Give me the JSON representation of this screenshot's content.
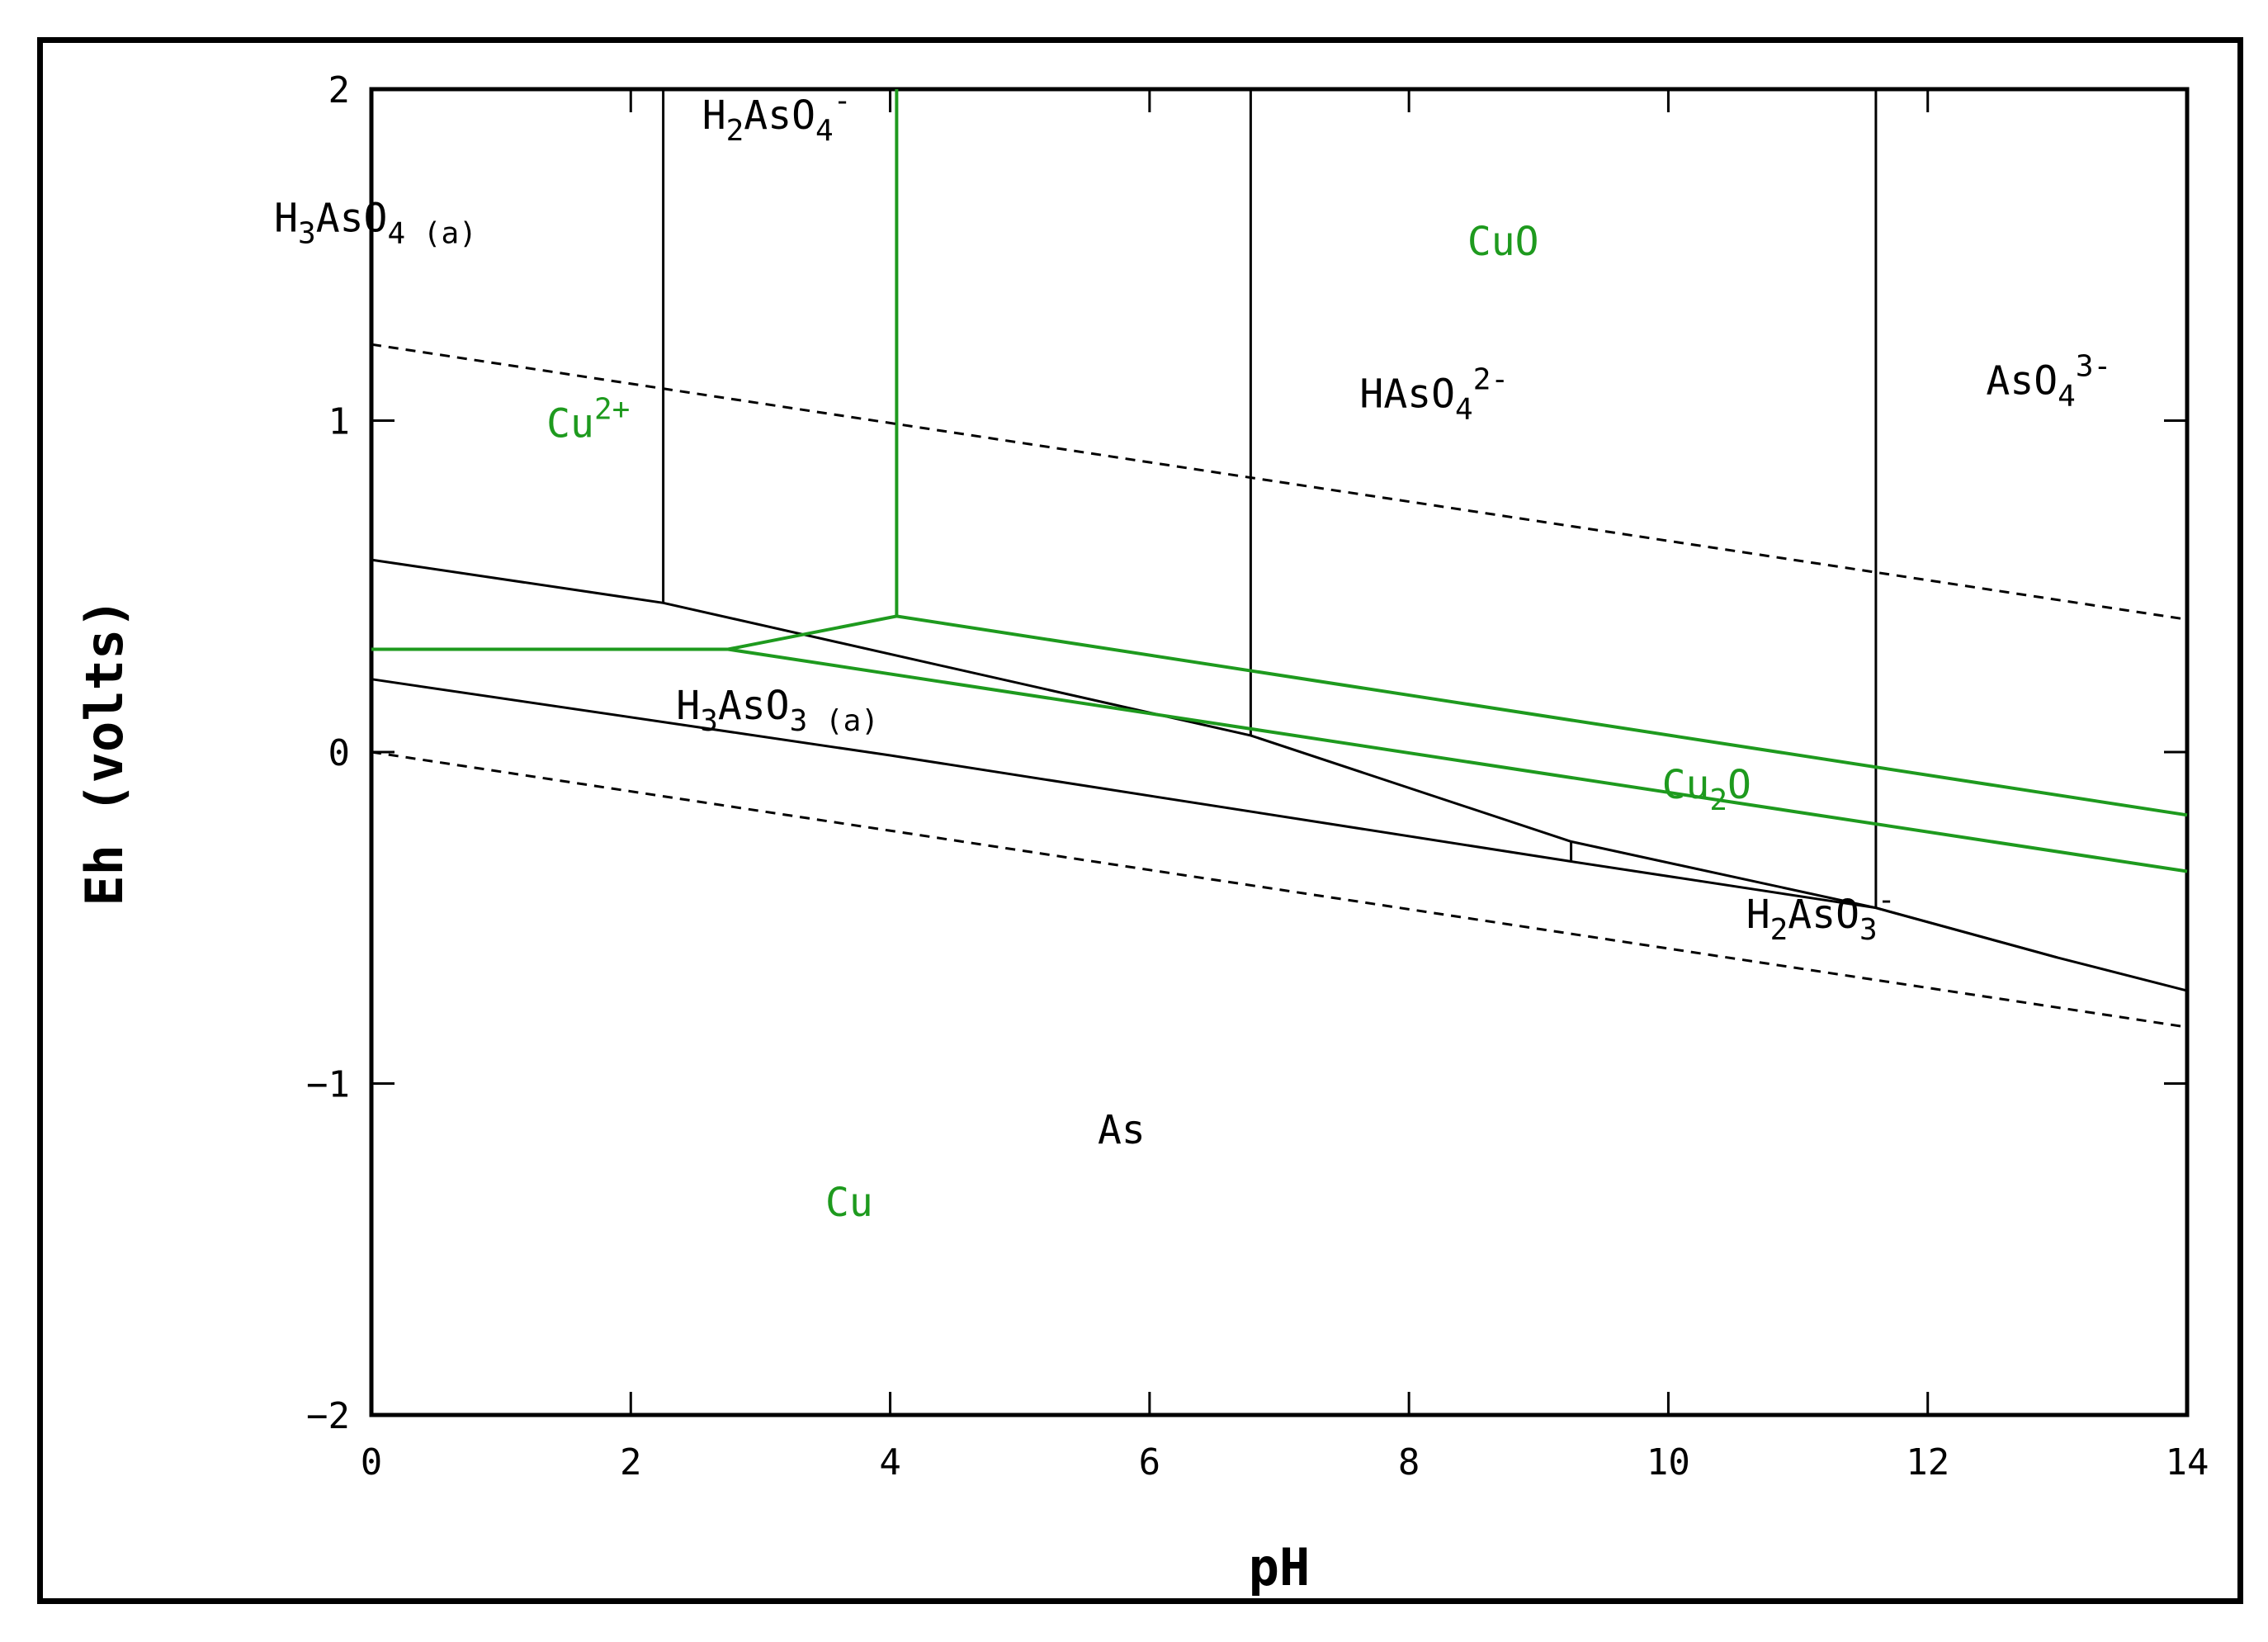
{
  "chart_data": {
    "type": "line",
    "xlabel": "pH",
    "ylabel": "Eh (volts)",
    "xlim": [
      0,
      14
    ],
    "ylim": [
      -2,
      2
    ],
    "x_ticks": [
      0,
      2,
      4,
      6,
      8,
      10,
      12,
      14
    ],
    "x_tick_labels": [
      "0",
      "2",
      "4",
      "6",
      "8",
      "10",
      "12",
      "14"
    ],
    "y_ticks": [
      -2,
      -1,
      0,
      1,
      2
    ],
    "y_tick_labels": [
      "−2",
      "−1",
      "0",
      "1",
      "2"
    ],
    "grid": false,
    "colors": {
      "arsenic": "#000000",
      "copper": "#1e9a1e",
      "water": "#000000"
    },
    "series": [
      {
        "group": "arsenic",
        "style": "solid",
        "points": [
          [
            2.25,
            2.0
          ],
          [
            2.25,
            0.45
          ]
        ]
      },
      {
        "group": "arsenic",
        "style": "solid",
        "points": [
          [
            6.78,
            2.0
          ],
          [
            6.78,
            0.05
          ]
        ]
      },
      {
        "group": "arsenic",
        "style": "solid",
        "points": [
          [
            11.6,
            2.0
          ],
          [
            11.6,
            -0.47
          ]
        ]
      },
      {
        "group": "arsenic",
        "style": "solid",
        "points": [
          [
            0,
            0.58
          ],
          [
            2.25,
            0.45
          ],
          [
            6.78,
            0.05
          ],
          [
            9.25,
            -0.27
          ],
          [
            11.6,
            -0.47
          ],
          [
            13.0,
            -0.62
          ],
          [
            14,
            -0.72
          ]
        ]
      },
      {
        "group": "arsenic",
        "style": "solid",
        "points": [
          [
            0,
            0.22
          ],
          [
            4.0,
            -0.01
          ],
          [
            9.25,
            -0.33
          ],
          [
            11.6,
            -0.47
          ],
          [
            13.0,
            -0.62
          ]
        ]
      },
      {
        "group": "arsenic",
        "style": "solid",
        "points": [
          [
            9.25,
            -0.27
          ],
          [
            9.25,
            -0.33
          ]
        ]
      },
      {
        "group": "copper",
        "style": "solid",
        "points": [
          [
            4.05,
            2.0
          ],
          [
            4.05,
            0.41
          ]
        ]
      },
      {
        "group": "copper",
        "style": "solid",
        "points": [
          [
            0,
            0.31
          ],
          [
            2.75,
            0.31
          ],
          [
            4.05,
            0.41
          ],
          [
            14,
            -0.19
          ]
        ]
      },
      {
        "group": "copper",
        "style": "solid",
        "points": [
          [
            2.75,
            0.31
          ],
          [
            14,
            -0.36
          ]
        ]
      },
      {
        "group": "water",
        "style": "dashed",
        "points": [
          [
            0,
            1.23
          ],
          [
            14,
            0.4
          ]
        ]
      },
      {
        "group": "water",
        "style": "dashed",
        "points": [
          [
            0,
            0.0
          ],
          [
            14,
            -0.83
          ]
        ]
      }
    ],
    "annotations": [
      {
        "group": "arsenic",
        "base": "H",
        "parts": [
          [
            "sub",
            "3"
          ],
          [
            "base",
            "AsO"
          ],
          [
            "sub",
            "4 (a)"
          ]
        ],
        "x": -0.75,
        "y": 1.57
      },
      {
        "group": "arsenic",
        "base": "H",
        "parts": [
          [
            "sub",
            "2"
          ],
          [
            "base",
            "AsO"
          ],
          [
            "sub",
            "4"
          ],
          [
            "sup",
            "-"
          ]
        ],
        "x": 2.55,
        "y": 1.88
      },
      {
        "group": "copper",
        "base": "CuO",
        "parts": [],
        "x": 8.45,
        "y": 1.5
      },
      {
        "group": "arsenic",
        "base": "HAsO",
        "parts": [
          [
            "sub",
            "4"
          ],
          [
            "sup",
            "2-"
          ]
        ],
        "x": 7.62,
        "y": 1.04
      },
      {
        "group": "arsenic",
        "base": "AsO",
        "parts": [
          [
            "sub",
            "4"
          ],
          [
            "sup",
            "3-"
          ]
        ],
        "x": 12.45,
        "y": 1.08
      },
      {
        "group": "copper",
        "base": "Cu",
        "parts": [
          [
            "sup",
            "2+"
          ]
        ],
        "x": 1.35,
        "y": 0.95
      },
      {
        "group": "arsenic",
        "base": "H",
        "parts": [
          [
            "sub",
            "3"
          ],
          [
            "base",
            "AsO"
          ],
          [
            "sub",
            "3 (a)"
          ]
        ],
        "x": 2.35,
        "y": 0.1
      },
      {
        "group": "copper",
        "base": "Cu",
        "parts": [
          [
            "sub",
            "2"
          ],
          [
            "base",
            "O"
          ]
        ],
        "x": 9.95,
        "y": -0.14
      },
      {
        "group": "arsenic",
        "base": "H",
        "parts": [
          [
            "sub",
            "2"
          ],
          [
            "base",
            "AsO"
          ],
          [
            "sub",
            "3"
          ],
          [
            "sup",
            "-"
          ]
        ],
        "x": 10.6,
        "y": -0.53
      },
      {
        "group": "arsenic",
        "base": "As",
        "parts": [],
        "x": 5.6,
        "y": -1.18
      },
      {
        "group": "copper",
        "base": "Cu",
        "parts": [],
        "x": 3.5,
        "y": -1.4
      }
    ]
  }
}
